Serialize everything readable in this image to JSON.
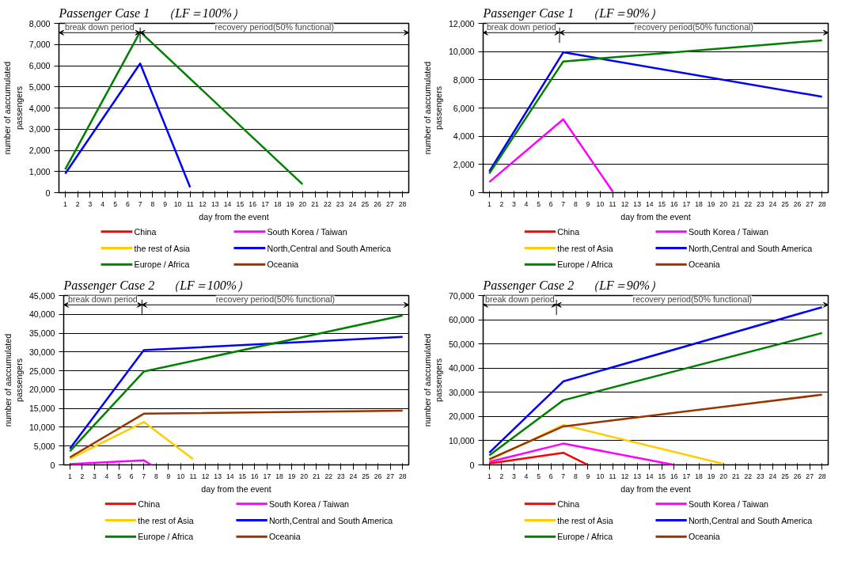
{
  "chart_data": [
    {
      "type": "line",
      "title": "Passenger Case 1　（LF＝100%）",
      "xlabel": "day from the event",
      "ylabel": "number of aaccumulated\npassengers",
      "xlim": [
        0.5,
        28.5
      ],
      "xticks": [
        1,
        2,
        3,
        4,
        5,
        6,
        7,
        8,
        9,
        10,
        11,
        12,
        13,
        14,
        15,
        16,
        17,
        18,
        19,
        20,
        21,
        22,
        23,
        24,
        25,
        26,
        27,
        28
      ],
      "ylim": [
        0,
        8000
      ],
      "yticks": [
        {
          "value": 0,
          "label": "0"
        },
        {
          "value": 1000,
          "label": "1,000"
        },
        {
          "value": 2000,
          "label": "2,000"
        },
        {
          "value": 3000,
          "label": "3,000"
        },
        {
          "value": 4000,
          "label": "4,000"
        },
        {
          "value": 5000,
          "label": "5,000"
        },
        {
          "value": 6000,
          "label": "6,000"
        },
        {
          "value": 7000,
          "label": "7,000"
        },
        {
          "value": 8000,
          "label": "8,000"
        }
      ],
      "grid": "y",
      "legend": "bottom",
      "ref_lines": [
        {
          "axis": "x",
          "value": 7
        }
      ],
      "annotations": [
        "break down period",
        "recovery period(50% functional)"
      ],
      "series": [
        {
          "name": "China",
          "color": "#ff0000"
        },
        {
          "name": "South Korea / Taiwan",
          "color": "#ff00ff"
        },
        {
          "name": "the rest of Asia",
          "color": "#ffcc00"
        },
        {
          "name": "North,Central and South America",
          "color": "#0000ff",
          "x": [
            1,
            7,
            11
          ],
          "values": [
            900,
            6100,
            250
          ]
        },
        {
          "name": "Europe / Africa",
          "color": "#008000",
          "x": [
            1,
            7,
            20
          ],
          "values": [
            1100,
            7600,
            400
          ]
        },
        {
          "name": "Oceania",
          "color": "#993300"
        }
      ]
    },
    {
      "type": "line",
      "title": "Passenger Case 1　（LF＝90%）",
      "xlabel": "day from the event",
      "ylabel": "number of aaccumulated\npassengers",
      "xlim": [
        0.5,
        28.5
      ],
      "xticks": [
        1,
        2,
        3,
        4,
        5,
        6,
        7,
        8,
        9,
        10,
        11,
        12,
        13,
        14,
        15,
        16,
        17,
        18,
        19,
        20,
        21,
        22,
        23,
        24,
        25,
        26,
        27,
        28
      ],
      "ylim": [
        0,
        12000
      ],
      "yticks": [
        {
          "value": 0,
          "label": "0"
        },
        {
          "value": 2000,
          "label": "2,000"
        },
        {
          "value": 4000,
          "label": "4,000"
        },
        {
          "value": 6000,
          "label": "6,000"
        },
        {
          "value": 8000,
          "label": "8,000"
        },
        {
          "value": 10000,
          "label": "10,000"
        },
        {
          "value": 12000,
          "label": "12,000"
        }
      ],
      "grid": "y",
      "legend": "bottom",
      "ref_lines": [
        {
          "axis": "x",
          "value": 6.7
        }
      ],
      "annotations": [
        "break down period",
        "recovery period(50% functional)"
      ],
      "series": [
        {
          "name": "China",
          "color": "#ff0000"
        },
        {
          "name": "South Korea / Taiwan",
          "color": "#ff00ff",
          "x": [
            1,
            7,
            11
          ],
          "values": [
            750,
            5200,
            100
          ]
        },
        {
          "name": "the rest of Asia",
          "color": "#ffcc00"
        },
        {
          "name": "North,Central and South America",
          "color": "#0000ff",
          "x": [
            1,
            7,
            28
          ],
          "values": [
            1500,
            9950,
            6800
          ]
        },
        {
          "name": "Europe / Africa",
          "color": "#008000",
          "x": [
            1,
            7,
            28
          ],
          "values": [
            1350,
            9300,
            10800
          ]
        },
        {
          "name": "Oceania",
          "color": "#993300"
        }
      ]
    },
    {
      "type": "line",
      "title": "Passenger Case 2　（LF＝100%）",
      "xlabel": "day from the event",
      "ylabel": "number of aaccumulated\npassengers",
      "xlim": [
        0.5,
        28.5
      ],
      "xticks": [
        1,
        2,
        3,
        4,
        5,
        6,
        7,
        8,
        9,
        10,
        11,
        12,
        13,
        14,
        15,
        16,
        17,
        18,
        19,
        20,
        21,
        22,
        23,
        24,
        25,
        26,
        27,
        28
      ],
      "ylim": [
        0,
        45000
      ],
      "yticks": [
        {
          "value": 0,
          "label": "0"
        },
        {
          "value": 5000,
          "label": "5,000"
        },
        {
          "value": 10000,
          "label": "10,000"
        },
        {
          "value": 15000,
          "label": "15,000"
        },
        {
          "value": 20000,
          "label": "20,000"
        },
        {
          "value": 25000,
          "label": "25,000"
        },
        {
          "value": 30000,
          "label": "30,000"
        },
        {
          "value": 35000,
          "label": "35,000"
        },
        {
          "value": 40000,
          "label": "40,000"
        },
        {
          "value": 45000,
          "label": "45,000"
        }
      ],
      "grid": "y",
      "legend": "bottom",
      "ref_lines": [
        {
          "axis": "x",
          "value": 6.85
        }
      ],
      "annotations": [
        "break down period",
        "recovery period(50% functional)"
      ],
      "series": [
        {
          "name": "China",
          "color": "#ff0000"
        },
        {
          "name": "South Korea / Taiwan",
          "color": "#ff00ff",
          "x": [
            1,
            7,
            7.6
          ],
          "values": [
            200,
            1200,
            0
          ]
        },
        {
          "name": "the rest of Asia",
          "color": "#ffcc00",
          "x": [
            1,
            7,
            11
          ],
          "values": [
            1600,
            11400,
            1500
          ]
        },
        {
          "name": "North,Central and South America",
          "color": "#0000ff",
          "x": [
            1,
            7,
            28
          ],
          "values": [
            4300,
            30500,
            34000
          ]
        },
        {
          "name": "Europe / Africa",
          "color": "#008000",
          "x": [
            1,
            7,
            28
          ],
          "values": [
            3600,
            24800,
            39700
          ]
        },
        {
          "name": "Oceania",
          "color": "#993300",
          "x": [
            1,
            7,
            28
          ],
          "values": [
            2000,
            13600,
            14400
          ]
        }
      ]
    },
    {
      "type": "line",
      "title": "Passenger Case 2　（LF＝90%）",
      "xlabel": "day from the event",
      "ylabel": "number of aaccumulated\npassengers",
      "xlim": [
        0.5,
        28.5
      ],
      "xticks": [
        1,
        2,
        3,
        4,
        5,
        6,
        7,
        8,
        9,
        10,
        11,
        12,
        13,
        14,
        15,
        16,
        17,
        18,
        19,
        20,
        21,
        22,
        23,
        24,
        25,
        26,
        27,
        28
      ],
      "ylim": [
        0,
        70000
      ],
      "yticks": [
        {
          "value": 0,
          "label": "0"
        },
        {
          "value": 10000,
          "label": "10,000"
        },
        {
          "value": 20000,
          "label": "20,000"
        },
        {
          "value": 30000,
          "label": "30,000"
        },
        {
          "value": 40000,
          "label": "40,000"
        },
        {
          "value": 50000,
          "label": "50,000"
        },
        {
          "value": 60000,
          "label": "60,000"
        },
        {
          "value": 70000,
          "label": "70,000"
        }
      ],
      "grid": "y",
      "legend": "bottom",
      "ref_lines": [
        {
          "axis": "x",
          "value": 6.45
        }
      ],
      "annotations": [
        "break down period",
        "recovery period(50% functional)"
      ],
      "series": [
        {
          "name": "China",
          "color": "#ff0000",
          "x": [
            1,
            7,
            9
          ],
          "values": [
            600,
            5000,
            0
          ]
        },
        {
          "name": "South Korea / Taiwan",
          "color": "#ff00ff",
          "x": [
            1,
            7,
            16
          ],
          "values": [
            1200,
            8800,
            0
          ]
        },
        {
          "name": "the rest of Asia",
          "color": "#ffcc00",
          "x": [
            1,
            7,
            20
          ],
          "values": [
            2000,
            16500,
            400
          ]
        },
        {
          "name": "North,Central and South America",
          "color": "#0000ff",
          "x": [
            1,
            7,
            28
          ],
          "values": [
            5000,
            34500,
            65200
          ]
        },
        {
          "name": "Europe / Africa",
          "color": "#008000",
          "x": [
            1,
            7,
            28
          ],
          "values": [
            3900,
            26700,
            54500
          ]
        },
        {
          "name": "Oceania",
          "color": "#993300",
          "x": [
            1,
            7,
            28
          ],
          "values": [
            2300,
            15900,
            29000
          ]
        }
      ]
    }
  ]
}
